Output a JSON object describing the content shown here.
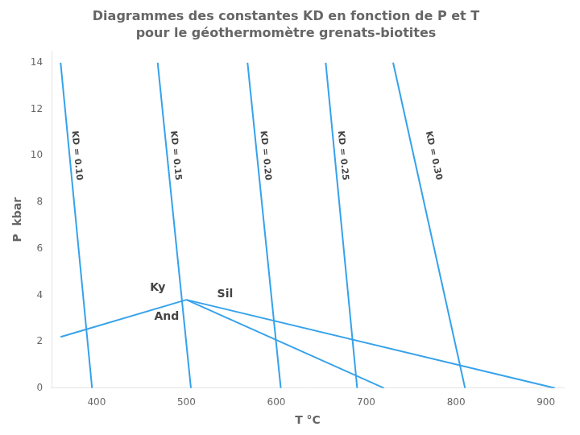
{
  "chart_data": {
    "type": "line",
    "title": "Diagrammes des constantes KD en fonction de P et T",
    "subtitle": "pour le géothermomètre grenats-biotites",
    "x_label": "T °C",
    "y_label": "P  kbar",
    "xlim": [
      350,
      920
    ],
    "ylim": [
      0,
      14.5
    ],
    "xticks": [
      400,
      500,
      600,
      700,
      800,
      900
    ],
    "yticks": [
      0,
      2,
      4,
      6,
      8,
      10,
      12,
      14
    ],
    "grid": false,
    "color": "#36a2eb",
    "series": [
      {
        "x": [
          360,
          395
        ],
        "values": [
          14.0,
          0.0
        ],
        "annotation": {
          "text": "KD = 0.10",
          "x": 378,
          "y": 10.0
        }
      },
      {
        "x": [
          468,
          505
        ],
        "values": [
          14.0,
          0.0
        ],
        "annotation": {
          "text": "KD = 0.15",
          "x": 488,
          "y": 10.0
        }
      },
      {
        "x": [
          568,
          605
        ],
        "values": [
          14.0,
          0.0
        ],
        "annotation": {
          "text": "KD = 0.20",
          "x": 588,
          "y": 10.0
        }
      },
      {
        "x": [
          655,
          690
        ],
        "values": [
          14.0,
          0.0
        ],
        "annotation": {
          "text": "KD = 0.25",
          "x": 674,
          "y": 10.0
        }
      },
      {
        "x": [
          730,
          810
        ],
        "values": [
          14.0,
          0.0
        ],
        "annotation": {
          "text": "KD = 0.30",
          "x": 775,
          "y": 10.0
        }
      },
      {
        "x": [
          360,
          500
        ],
        "values": [
          2.2,
          3.8
        ]
      },
      {
        "x": [
          500,
          720
        ],
        "values": [
          3.8,
          0.0
        ]
      },
      {
        "x": [
          500,
          910
        ],
        "values": [
          3.8,
          0.0
        ]
      }
    ],
    "annotations": [
      {
        "text": "Ky",
        "x": 468,
        "y": 4.3
      },
      {
        "text": "And",
        "x": 478,
        "y": 3.05
      },
      {
        "text": "Sil",
        "x": 543,
        "y": 4.05
      }
    ]
  }
}
